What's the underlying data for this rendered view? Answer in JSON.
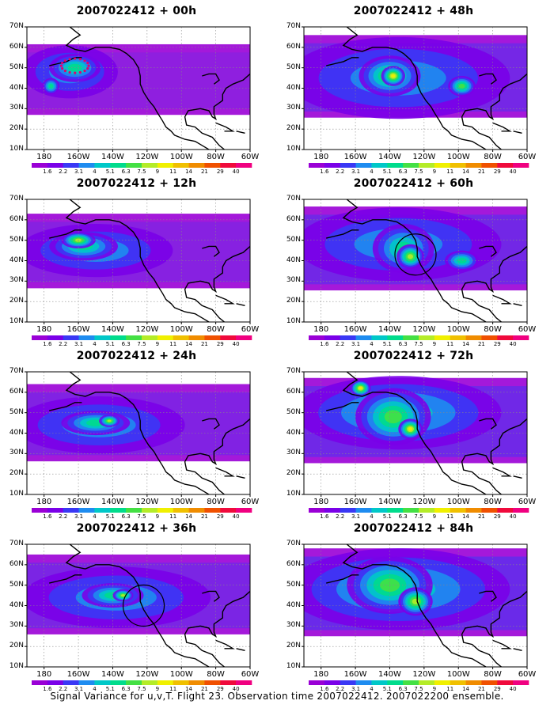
{
  "panels": [
    {
      "title": "2007022412 + 00h",
      "intensity": 0.35,
      "circle": false,
      "dots": true,
      "blobs": [
        {
          "lon": 195,
          "lat": 48,
          "rx": 28,
          "ry": 13,
          "level": 3
        },
        {
          "lon": 198,
          "lat": 50,
          "rx": 15,
          "ry": 7,
          "level": 5
        },
        {
          "lon": 184,
          "lat": 41,
          "rx": 5,
          "ry": 4,
          "level": 5
        }
      ]
    },
    {
      "title": "2007022412 + 48h",
      "intensity": 0.8,
      "circle": false,
      "dots": false,
      "blobs": [
        {
          "lon": 225,
          "lat": 45,
          "rx": 65,
          "ry": 20,
          "level": 3
        },
        {
          "lon": 220,
          "lat": 46,
          "rx": 18,
          "ry": 10,
          "level": 6
        },
        {
          "lon": 222,
          "lat": 46,
          "rx": 7,
          "ry": 5,
          "level": 8
        },
        {
          "lon": 262,
          "lat": 41,
          "rx": 8,
          "ry": 5,
          "level": 6
        }
      ]
    },
    {
      "title": "2007022412 + 12h",
      "intensity": 0.5,
      "circle": false,
      "dots": false,
      "blobs": [
        {
          "lon": 210,
          "lat": 45,
          "rx": 45,
          "ry": 13,
          "level": 3
        },
        {
          "lon": 203,
          "lat": 47,
          "rx": 20,
          "ry": 7,
          "level": 5
        },
        {
          "lon": 200,
          "lat": 50,
          "rx": 10,
          "ry": 4,
          "level": 7
        }
      ]
    },
    {
      "title": "2007022412 + 60h",
      "intensity": 0.85,
      "circle": true,
      "circle_lon": 235,
      "circle_lat": 43,
      "dots": false,
      "blobs": [
        {
          "lon": 225,
          "lat": 48,
          "rx": 60,
          "ry": 18,
          "level": 3
        },
        {
          "lon": 228,
          "lat": 46,
          "rx": 18,
          "ry": 12,
          "level": 5
        },
        {
          "lon": 232,
          "lat": 42,
          "rx": 8,
          "ry": 6,
          "level": 7
        },
        {
          "lon": 262,
          "lat": 40,
          "rx": 10,
          "ry": 5,
          "level": 5
        }
      ]
    },
    {
      "title": "2007022412 + 24h",
      "intensity": 0.6,
      "circle": false,
      "dots": false,
      "blobs": [
        {
          "lon": 212,
          "lat": 44,
          "rx": 50,
          "ry": 14,
          "level": 3
        },
        {
          "lon": 210,
          "lat": 45,
          "rx": 20,
          "ry": 6,
          "level": 5
        },
        {
          "lon": 218,
          "lat": 46,
          "rx": 6,
          "ry": 3,
          "level": 7
        }
      ]
    },
    {
      "title": "2007022412 + 72h",
      "intensity": 0.9,
      "circle": false,
      "dots": false,
      "blobs": [
        {
          "lon": 225,
          "lat": 50,
          "rx": 60,
          "ry": 18,
          "level": 4
        },
        {
          "lon": 222,
          "lat": 48,
          "rx": 22,
          "ry": 14,
          "level": 6
        },
        {
          "lon": 232,
          "lat": 42,
          "rx": 7,
          "ry": 5,
          "level": 8
        },
        {
          "lon": 203,
          "lat": 62,
          "rx": 6,
          "ry": 4,
          "level": 8
        }
      ]
    },
    {
      "title": "2007022412 + 36h",
      "intensity": 0.7,
      "circle": true,
      "circle_lon": 238,
      "circle_lat": 40,
      "dots": false,
      "blobs": [
        {
          "lon": 222,
          "lat": 44,
          "rx": 55,
          "ry": 15,
          "level": 3
        },
        {
          "lon": 220,
          "lat": 45,
          "rx": 18,
          "ry": 6,
          "level": 5
        },
        {
          "lon": 226,
          "lat": 45,
          "rx": 6,
          "ry": 3,
          "level": 7
        }
      ]
    },
    {
      "title": "2007022412 + 84h",
      "intensity": 1.0,
      "circle": false,
      "dots": false,
      "blobs": [
        {
          "lon": 225,
          "lat": 48,
          "rx": 65,
          "ry": 20,
          "level": 4
        },
        {
          "lon": 220,
          "lat": 50,
          "rx": 25,
          "ry": 14,
          "level": 6
        },
        {
          "lon": 235,
          "lat": 42,
          "rx": 10,
          "ry": 7,
          "level": 7
        }
      ]
    }
  ],
  "lat_labels": [
    "70N",
    "60N",
    "50N",
    "40N",
    "30N",
    "20N",
    "10N"
  ],
  "lon_labels": [
    "180",
    "160W",
    "140W",
    "120W",
    "100W",
    "80W",
    "60W"
  ],
  "colorbar": {
    "labels": [
      "1.6",
      "2.2",
      "3.1",
      "4",
      "5.1",
      "6.3",
      "7.5",
      "9",
      "11",
      "14",
      "21",
      "29",
      "40"
    ],
    "colors": [
      "#9a00d6",
      "#7a00e8",
      "#3a38f5",
      "#1e8cf0",
      "#00c8c8",
      "#00dc8c",
      "#44e044",
      "#b4ec28",
      "#f0f000",
      "#f0c000",
      "#f08c00",
      "#f05000",
      "#f00a3c",
      "#f00080"
    ]
  },
  "footer": "Signal Variance for u,v,T. Flight 23. Observation time 2007022412. 2007022200 ensemble."
}
